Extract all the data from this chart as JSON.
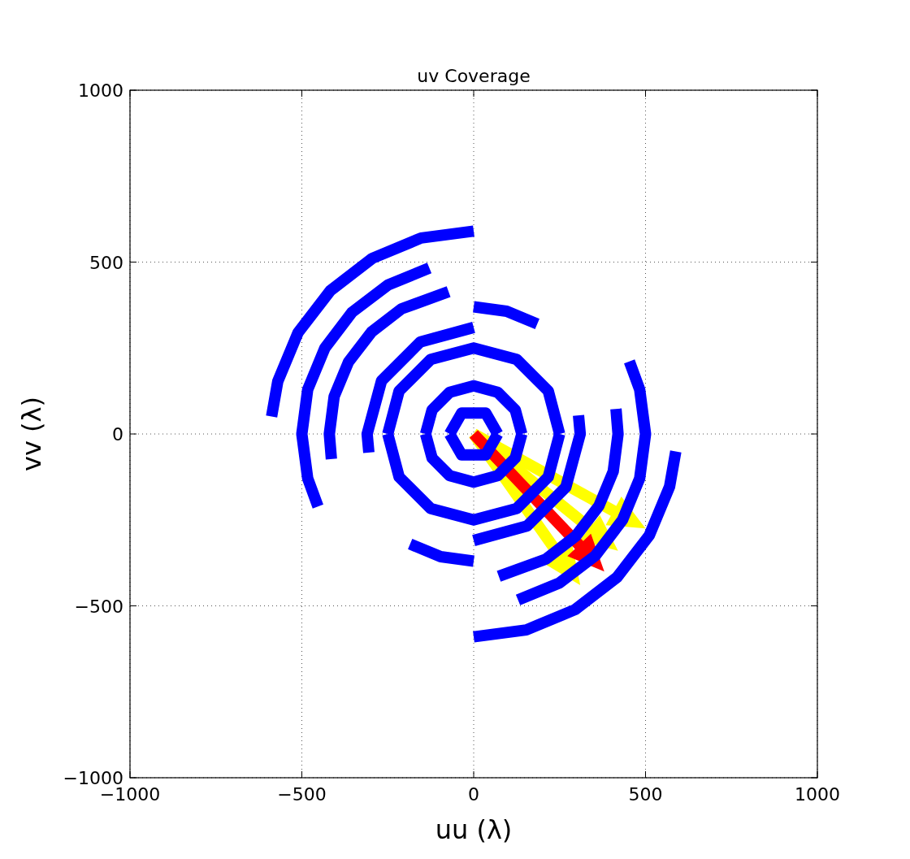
{
  "chart_data": {
    "type": "line",
    "title": "uv Coverage",
    "xlabel": "uu (λ)",
    "ylabel": "vv (λ)",
    "xlim": [
      -1000,
      1000
    ],
    "ylim": [
      -1000,
      1000
    ],
    "xticks": [
      {
        "value": -1000,
        "label": "−1000"
      },
      {
        "value": -500,
        "label": "−500"
      },
      0,
      500,
      1000
    ],
    "yticks": [
      {
        "value": -1000,
        "label": "−1000"
      },
      {
        "value": -500,
        "label": "−500"
      },
      0,
      500,
      1000
    ],
    "grid": true,
    "marker": "none",
    "line_style": "solid",
    "series": [
      {
        "color": "#0000ff",
        "x": [
          0,
          -153,
          -295,
          -417,
          -511,
          -570,
          -588
        ],
        "values": [
          590,
          570,
          511,
          417,
          295,
          153,
          51
        ]
      },
      {
        "color": "#0000ff",
        "x": [
          0,
          153,
          295,
          417,
          511,
          570,
          588
        ],
        "values": [
          -590,
          -570,
          -511,
          -417,
          -295,
          -153,
          -51
        ]
      },
      {
        "color": "#0000ff",
        "x": [
          -129,
          -250,
          -354,
          -433,
          -483,
          -500,
          -483,
          -453
        ],
        "values": [
          483,
          433,
          354,
          250,
          129,
          0,
          -129,
          -211
        ]
      },
      {
        "color": "#0000ff",
        "x": [
          129,
          250,
          354,
          433,
          483,
          500,
          483,
          453
        ],
        "values": [
          -483,
          -433,
          -354,
          -250,
          -129,
          0,
          129,
          211
        ]
      },
      {
        "color": "#0000ff",
        "x": [
          -73,
          -210,
          -297,
          -364,
          -406,
          -420,
          -414
        ],
        "values": [
          414,
          364,
          297,
          210,
          109,
          0,
          -73
        ]
      },
      {
        "color": "#0000ff",
        "x": [
          73,
          210,
          297,
          364,
          406,
          420,
          414
        ],
        "values": [
          -414,
          -364,
          -297,
          -210,
          -109,
          0,
          73
        ]
      },
      {
        "color": "#0000ff",
        "x": [
          185,
          96,
          0
        ],
        "values": [
          320,
          357,
          370
        ]
      },
      {
        "color": "#0000ff",
        "x": [
          -185,
          -96,
          0
        ],
        "values": [
          -320,
          -357,
          -370
        ]
      },
      {
        "color": "#0000ff",
        "x": [
          0,
          -155,
          -268,
          -310,
          -305
        ],
        "values": [
          310,
          268,
          155,
          0,
          -54
        ]
      },
      {
        "color": "#0000ff",
        "x": [
          0,
          155,
          268,
          310,
          305
        ],
        "values": [
          -310,
          -268,
          -155,
          0,
          54
        ]
      },
      {
        "color": "#0000ff",
        "x": [
          250,
          217,
          125,
          0,
          -125,
          -217,
          -250
        ],
        "values": [
          0,
          125,
          217,
          250,
          217,
          125,
          0
        ]
      },
      {
        "color": "#0000ff",
        "x": [
          -250,
          -217,
          -125,
          0,
          125,
          217,
          250
        ],
        "values": [
          0,
          -125,
          -217,
          -250,
          -217,
          -125,
          0
        ]
      },
      {
        "color": "#0000ff",
        "x": [
          140,
          121,
          70,
          0,
          -70,
          -121,
          -140
        ],
        "values": [
          0,
          70,
          121,
          140,
          121,
          70,
          0
        ]
      },
      {
        "color": "#0000ff",
        "x": [
          -140,
          -121,
          -70,
          0,
          70,
          121,
          140
        ],
        "values": [
          0,
          -70,
          -121,
          -140,
          -121,
          -70,
          0
        ]
      },
      {
        "color": "#0000ff",
        "x": [
          70,
          35,
          -35,
          -70
        ],
        "values": [
          0,
          61,
          61,
          0
        ]
      },
      {
        "color": "#0000ff",
        "x": [
          -70,
          -35,
          35,
          70
        ],
        "values": [
          0,
          -61,
          -61,
          0
        ]
      }
    ]
  }
}
